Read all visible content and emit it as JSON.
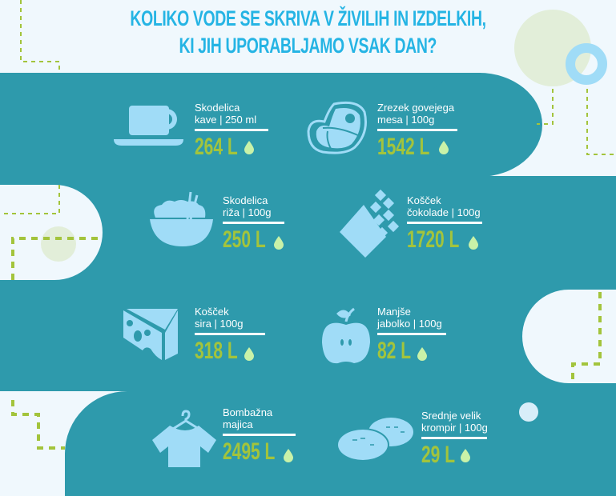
{
  "title": {
    "line1": "KOLIKO VODE SE SKRIVA V ŽIVILIH IN IZDELKIH,",
    "line2": "KI JIH UPORABLJAMO VSAK DAN?"
  },
  "colors": {
    "band": "#2e9aac",
    "background": "#f0f8fd",
    "title": "#25b4e4",
    "icon": "#a0dcf7",
    "value": "#a3c43c",
    "drop": "#c9f2a8",
    "dash": "#a3c43c"
  },
  "items": [
    {
      "label1": "Skodelica",
      "label2": "kave | 250 ml",
      "value": "264 L",
      "icon": "coffee-cup-icon"
    },
    {
      "label1": "Zrezek govejega",
      "label2": "mesa | 100g",
      "value": "1542 L",
      "icon": "steak-icon"
    },
    {
      "label1": "Skodelica",
      "label2": "riža | 100g",
      "value": "250 L",
      "icon": "rice-bowl-icon"
    },
    {
      "label1": "Košček",
      "label2": "čokolade | 100g",
      "value": "1720 L",
      "icon": "chocolate-bar-icon"
    },
    {
      "label1": "Košček",
      "label2": "sira | 100g",
      "value": "318 L",
      "icon": "cheese-icon"
    },
    {
      "label1": "Manjše",
      "label2": "jabolko | 100g",
      "value": "82 L",
      "icon": "apple-icon"
    },
    {
      "label1": "Bombažna",
      "label2": "majica",
      "value": "2495 L",
      "icon": "t-shirt-icon"
    },
    {
      "label1": "Srednje velik",
      "label2": "krompir | 100g",
      "value": "29 L",
      "icon": "potato-icon"
    }
  ]
}
